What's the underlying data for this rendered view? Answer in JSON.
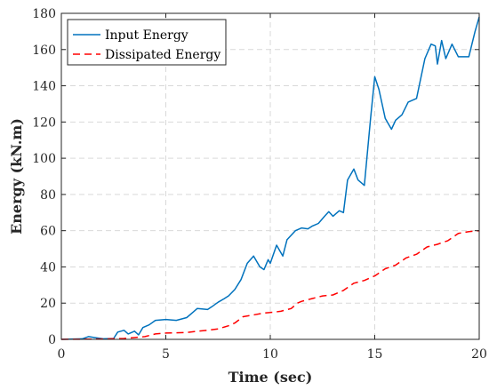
{
  "chart_data": {
    "type": "line",
    "title": "",
    "xlabel": "Time (sec)",
    "ylabel": "Energy (kN.m)",
    "xlim": [
      0,
      20
    ],
    "ylim": [
      0,
      180
    ],
    "xticks": [
      0,
      5,
      10,
      15,
      20
    ],
    "yticks": [
      0,
      20,
      40,
      60,
      80,
      100,
      120,
      140,
      160,
      180
    ],
    "xtick_labels": [
      "0",
      "5",
      "10",
      "15",
      "20"
    ],
    "ytick_labels": [
      "0",
      "20",
      "40",
      "60",
      "80",
      "100",
      "120",
      "140",
      "160",
      "180"
    ],
    "grid": true,
    "legend_position": "top-left",
    "series": [
      {
        "name": "Input Energy",
        "color": "#0072BD",
        "style": "solid",
        "points": [
          [
            0,
            0
          ],
          [
            1.0,
            0.3
          ],
          [
            1.3,
            1.5
          ],
          [
            1.6,
            1.0
          ],
          [
            2.0,
            0.3
          ],
          [
            2.5,
            0.5
          ],
          [
            2.7,
            4.0
          ],
          [
            3.0,
            5.0
          ],
          [
            3.2,
            3.0
          ],
          [
            3.5,
            4.5
          ],
          [
            3.7,
            2.5
          ],
          [
            3.9,
            6.5
          ],
          [
            4.2,
            8.0
          ],
          [
            4.5,
            10.5
          ],
          [
            5.0,
            11.0
          ],
          [
            5.5,
            10.5
          ],
          [
            6.0,
            12.0
          ],
          [
            6.3,
            15.0
          ],
          [
            6.5,
            17.0
          ],
          [
            7.0,
            16.5
          ],
          [
            7.2,
            18.0
          ],
          [
            7.5,
            20.5
          ],
          [
            7.8,
            22.5
          ],
          [
            8.0,
            24.0
          ],
          [
            8.3,
            27.5
          ],
          [
            8.6,
            33.0
          ],
          [
            8.9,
            42.0
          ],
          [
            9.2,
            46.0
          ],
          [
            9.5,
            40.0
          ],
          [
            9.7,
            38.5
          ],
          [
            9.9,
            44.0
          ],
          [
            10.0,
            42.0
          ],
          [
            10.3,
            52.0
          ],
          [
            10.6,
            46.0
          ],
          [
            10.8,
            55.0
          ],
          [
            11.2,
            60.0
          ],
          [
            11.5,
            61.5
          ],
          [
            11.8,
            61.0
          ],
          [
            12.0,
            62.5
          ],
          [
            12.3,
            64.0
          ],
          [
            12.6,
            68.0
          ],
          [
            12.8,
            70.5
          ],
          [
            13.0,
            68.0
          ],
          [
            13.3,
            71.0
          ],
          [
            13.5,
            70.0
          ],
          [
            13.7,
            88.0
          ],
          [
            14.0,
            94.0
          ],
          [
            14.2,
            88.0
          ],
          [
            14.5,
            85.0
          ],
          [
            14.8,
            122.0
          ],
          [
            15.0,
            145.0
          ],
          [
            15.2,
            138.0
          ],
          [
            15.5,
            122.0
          ],
          [
            15.8,
            116.0
          ],
          [
            16.0,
            121.0
          ],
          [
            16.3,
            124.0
          ],
          [
            16.6,
            131.0
          ],
          [
            17.0,
            133.0
          ],
          [
            17.4,
            155.0
          ],
          [
            17.7,
            163.0
          ],
          [
            17.9,
            162.0
          ],
          [
            18.0,
            152.0
          ],
          [
            18.2,
            165.0
          ],
          [
            18.4,
            155.0
          ],
          [
            18.7,
            163.0
          ],
          [
            19.0,
            156.0
          ],
          [
            19.5,
            156.0
          ],
          [
            19.8,
            170.0
          ],
          [
            20.0,
            178.0
          ]
        ]
      },
      {
        "name": "Dissipated Energy",
        "color": "#FF0000",
        "style": "dashed",
        "points": [
          [
            0,
            0
          ],
          [
            2.0,
            0.2
          ],
          [
            3.0,
            0.5
          ],
          [
            3.5,
            1.0
          ],
          [
            4.0,
            1.5
          ],
          [
            4.5,
            3.0
          ],
          [
            5.0,
            3.5
          ],
          [
            6.0,
            3.8
          ],
          [
            6.5,
            4.5
          ],
          [
            7.0,
            5.0
          ],
          [
            7.5,
            5.8
          ],
          [
            8.0,
            7.5
          ],
          [
            8.3,
            9.0
          ],
          [
            8.7,
            12.5
          ],
          [
            9.2,
            13.5
          ],
          [
            9.7,
            14.5
          ],
          [
            10.0,
            14.8
          ],
          [
            10.5,
            15.5
          ],
          [
            11.0,
            17.0
          ],
          [
            11.3,
            20.0
          ],
          [
            11.5,
            21.0
          ],
          [
            12.0,
            22.5
          ],
          [
            12.5,
            24.0
          ],
          [
            13.0,
            24.5
          ],
          [
            13.5,
            27.0
          ],
          [
            14.0,
            31.0
          ],
          [
            14.5,
            32.5
          ],
          [
            15.0,
            35.0
          ],
          [
            15.5,
            39.0
          ],
          [
            16.0,
            41.0
          ],
          [
            16.5,
            45.0
          ],
          [
            17.0,
            47.0
          ],
          [
            17.5,
            51.0
          ],
          [
            18.0,
            52.5
          ],
          [
            18.5,
            54.5
          ],
          [
            19.0,
            58.5
          ],
          [
            19.5,
            59.5
          ],
          [
            20.0,
            60.0
          ]
        ]
      }
    ]
  }
}
